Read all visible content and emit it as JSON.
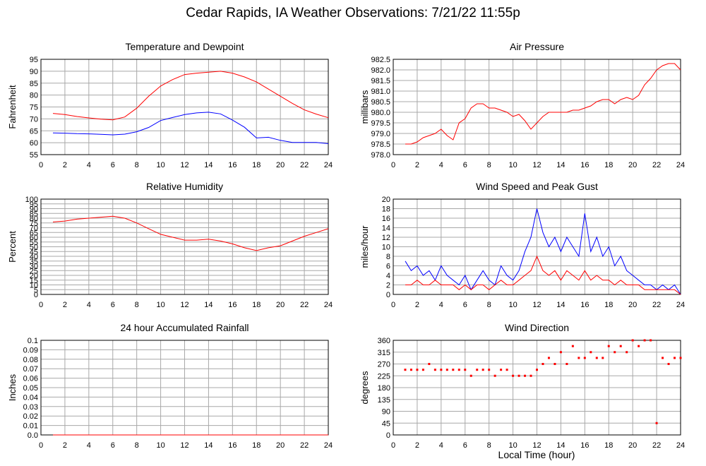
{
  "page": {
    "title": "Cedar Rapids, IA Weather Observations: 7/21/22 11:55p",
    "x_axis_label": "Local Time (hour)"
  },
  "colors": {
    "primary_series": "#ff0000",
    "secondary_series": "#0000ff",
    "grid": "#a8a8a8",
    "axis": "#000000"
  },
  "chart_data": [
    {
      "type": "line",
      "title": "Temperature and Dewpoint",
      "ylabel": "Fahrenheit",
      "xlim": [
        0,
        24
      ],
      "ylim": [
        55,
        95
      ],
      "x_ticks": [
        "0",
        "2",
        "4",
        "6",
        "8",
        "10",
        "12",
        "14",
        "16",
        "18",
        "20",
        "22",
        "24"
      ],
      "y_ticks": [
        "55",
        "60",
        "65",
        "70",
        "75",
        "80",
        "85",
        "90",
        "95"
      ],
      "grid": true,
      "x": [
        1,
        2,
        3,
        4,
        5,
        6,
        7,
        8,
        9,
        10,
        11,
        12,
        13,
        14,
        15,
        16,
        17,
        18,
        19,
        20,
        21,
        22,
        23,
        24
      ],
      "series": [
        {
          "color": "#ff0000",
          "values": [
            72.3,
            71.8,
            71.0,
            70.4,
            69.9,
            69.6,
            70.8,
            74.5,
            79.5,
            83.8,
            86.5,
            88.6,
            89.2,
            89.6,
            90.0,
            89.2,
            87.6,
            85.5,
            82.5,
            79.5,
            76.5,
            73.8,
            72.0,
            70.5
          ]
        },
        {
          "color": "#0000ff",
          "values": [
            64.1,
            64.0,
            63.8,
            63.7,
            63.5,
            63.3,
            63.6,
            64.6,
            66.4,
            69.3,
            70.6,
            71.8,
            72.5,
            72.8,
            72.1,
            69.5,
            66.5,
            62.0,
            62.3,
            61.0,
            60.1,
            60.1,
            60.1,
            59.6
          ]
        }
      ]
    },
    {
      "type": "line",
      "title": "Air Pressure",
      "ylabel": "millibars",
      "xlim": [
        0,
        24
      ],
      "ylim": [
        978.0,
        982.5
      ],
      "x_ticks": [
        "0",
        "2",
        "4",
        "6",
        "8",
        "10",
        "12",
        "14",
        "16",
        "18",
        "20",
        "22",
        "24"
      ],
      "y_ticks": [
        "978.0",
        "978.5",
        "979.0",
        "979.5",
        "980.0",
        "980.5",
        "981.0",
        "981.5",
        "982.0",
        "982.5"
      ],
      "grid": true,
      "x": [
        1,
        1.5,
        2,
        2.5,
        3,
        3.5,
        4,
        4.5,
        5,
        5.5,
        6,
        6.5,
        7,
        7.5,
        8,
        8.5,
        9,
        9.5,
        10,
        10.5,
        11,
        11.5,
        12,
        12.5,
        13,
        13.5,
        14,
        14.5,
        15,
        15.5,
        16,
        16.5,
        17,
        17.5,
        18,
        18.5,
        19,
        19.5,
        20,
        20.5,
        21,
        21.5,
        22,
        22.5,
        23,
        23.5,
        24
      ],
      "series": [
        {
          "color": "#ff0000",
          "values": [
            978.5,
            978.5,
            978.6,
            978.8,
            978.9,
            979.0,
            979.2,
            978.9,
            978.7,
            979.5,
            979.7,
            980.2,
            980.4,
            980.4,
            980.2,
            980.2,
            980.1,
            980.0,
            979.8,
            979.9,
            979.6,
            979.2,
            979.5,
            979.8,
            980.0,
            980.0,
            980.0,
            980.0,
            980.1,
            980.1,
            980.2,
            980.3,
            980.5,
            980.6,
            980.6,
            980.4,
            980.6,
            980.7,
            980.6,
            980.8,
            981.3,
            981.6,
            982.0,
            982.2,
            982.3,
            982.3,
            982.0
          ]
        }
      ]
    },
    {
      "type": "line",
      "title": "Relative Humidity",
      "ylabel": "Percent",
      "xlim": [
        0,
        24
      ],
      "ylim": [
        0,
        100
      ],
      "x_ticks": [
        "0",
        "2",
        "4",
        "6",
        "8",
        "10",
        "12",
        "14",
        "16",
        "18",
        "20",
        "22",
        "24"
      ],
      "y_ticks": [
        "0",
        "5",
        "10",
        "15",
        "20",
        "25",
        "30",
        "35",
        "40",
        "45",
        "50",
        "55",
        "60",
        "65",
        "70",
        "75",
        "80",
        "85",
        "90",
        "95",
        "100"
      ],
      "grid": true,
      "x": [
        1,
        2,
        3,
        4,
        5,
        6,
        7,
        8,
        9,
        10,
        11,
        12,
        13,
        14,
        15,
        16,
        17,
        18,
        19,
        20,
        21,
        22,
        23,
        24
      ],
      "series": [
        {
          "color": "#ff0000",
          "values": [
            76,
            77,
            79,
            80,
            81,
            82,
            80,
            75,
            69,
            63,
            60,
            57,
            57,
            58,
            56,
            53,
            49,
            46,
            49,
            51,
            56,
            61,
            65,
            69
          ]
        }
      ]
    },
    {
      "type": "line",
      "title": "Wind Speed and Peak Gust",
      "ylabel": "miles/hour",
      "xlim": [
        0,
        24
      ],
      "ylim": [
        0,
        20
      ],
      "x_ticks": [
        "0",
        "2",
        "4",
        "6",
        "8",
        "10",
        "12",
        "14",
        "16",
        "18",
        "20",
        "22",
        "24"
      ],
      "y_ticks": [
        "0",
        "2",
        "4",
        "6",
        "8",
        "10",
        "12",
        "14",
        "16",
        "18",
        "20"
      ],
      "grid": true,
      "x": [
        1,
        1.5,
        2,
        2.5,
        3,
        3.5,
        4,
        4.5,
        5,
        5.5,
        6,
        6.5,
        7,
        7.5,
        8,
        8.5,
        9,
        9.5,
        10,
        10.5,
        11,
        11.5,
        12,
        12.5,
        13,
        13.5,
        14,
        14.5,
        15,
        15.5,
        16,
        16.5,
        17,
        17.5,
        18,
        18.5,
        19,
        19.5,
        20,
        20.5,
        21,
        21.5,
        22,
        22.5,
        23,
        23.5,
        24
      ],
      "series": [
        {
          "color": "#0000ff",
          "values": [
            7,
            5,
            6,
            4,
            5,
            3,
            6,
            4,
            3,
            2,
            4,
            1,
            3,
            5,
            3,
            2,
            6,
            4,
            3,
            5,
            9,
            12,
            18,
            13,
            10,
            12,
            9,
            12,
            10,
            8,
            17,
            9,
            12,
            8,
            10,
            6,
            8,
            5,
            4,
            3,
            2,
            2,
            1,
            2,
            1,
            2,
            0
          ]
        },
        {
          "color": "#ff0000",
          "values": [
            2,
            2,
            3,
            2,
            2,
            3,
            2,
            2,
            2,
            1,
            2,
            1,
            2,
            2,
            1,
            2,
            3,
            2,
            2,
            3,
            4,
            5,
            8,
            5,
            4,
            5,
            3,
            5,
            4,
            3,
            5,
            3,
            4,
            3,
            3,
            2,
            3,
            2,
            2,
            2,
            1,
            1,
            1,
            1,
            1,
            1,
            0
          ]
        }
      ]
    },
    {
      "type": "line",
      "title": "24 hour Accumulated Rainfall",
      "ylabel": "Inches",
      "xlim": [
        0,
        24
      ],
      "ylim": [
        0,
        0.1
      ],
      "x_ticks": [
        "0",
        "2",
        "4",
        "6",
        "8",
        "10",
        "12",
        "14",
        "16",
        "18",
        "20",
        "22",
        "24"
      ],
      "y_ticks": [
        "0.0",
        "0.01",
        "0.02",
        "0.03",
        "0.04",
        "0.05",
        "0.06",
        "0.07",
        "0.08",
        "0.09",
        "0.1"
      ],
      "grid": true,
      "x": [
        1,
        24
      ],
      "series": [
        {
          "color": "#ff0000",
          "values": [
            0,
            0
          ]
        }
      ]
    },
    {
      "type": "scatter",
      "title": "Wind Direction",
      "ylabel": "degrees",
      "xlim": [
        0,
        24
      ],
      "ylim": [
        0,
        360
      ],
      "x_ticks": [
        "0",
        "2",
        "4",
        "6",
        "8",
        "10",
        "12",
        "14",
        "16",
        "18",
        "20",
        "22",
        "24"
      ],
      "y_ticks": [
        "0",
        "45",
        "90",
        "135",
        "180",
        "225",
        "270",
        "315",
        "360"
      ],
      "grid": true,
      "x": [
        1,
        1.5,
        2,
        2.5,
        3,
        3.5,
        4,
        4.5,
        5,
        5.5,
        6,
        6.5,
        7,
        7.5,
        8,
        8.5,
        9,
        9.5,
        10,
        10.5,
        11,
        11.5,
        12,
        12.5,
        13,
        13.5,
        14,
        14.5,
        15,
        15.5,
        16,
        16.5,
        17,
        17.5,
        18,
        18.5,
        19,
        19.5,
        20,
        20.5,
        21,
        21.5,
        22,
        22.5,
        23,
        23.5,
        24
      ],
      "series": [
        {
          "color": "#ff0000",
          "values": [
            248,
            248,
            248,
            248,
            270,
            248,
            248,
            248,
            248,
            248,
            248,
            225,
            248,
            248,
            248,
            225,
            248,
            248,
            225,
            225,
            225,
            225,
            248,
            270,
            293,
            270,
            315,
            270,
            338,
            293,
            293,
            315,
            293,
            293,
            338,
            315,
            338,
            315,
            360,
            338,
            360,
            360,
            45,
            293,
            270,
            293,
            293
          ]
        }
      ]
    }
  ]
}
